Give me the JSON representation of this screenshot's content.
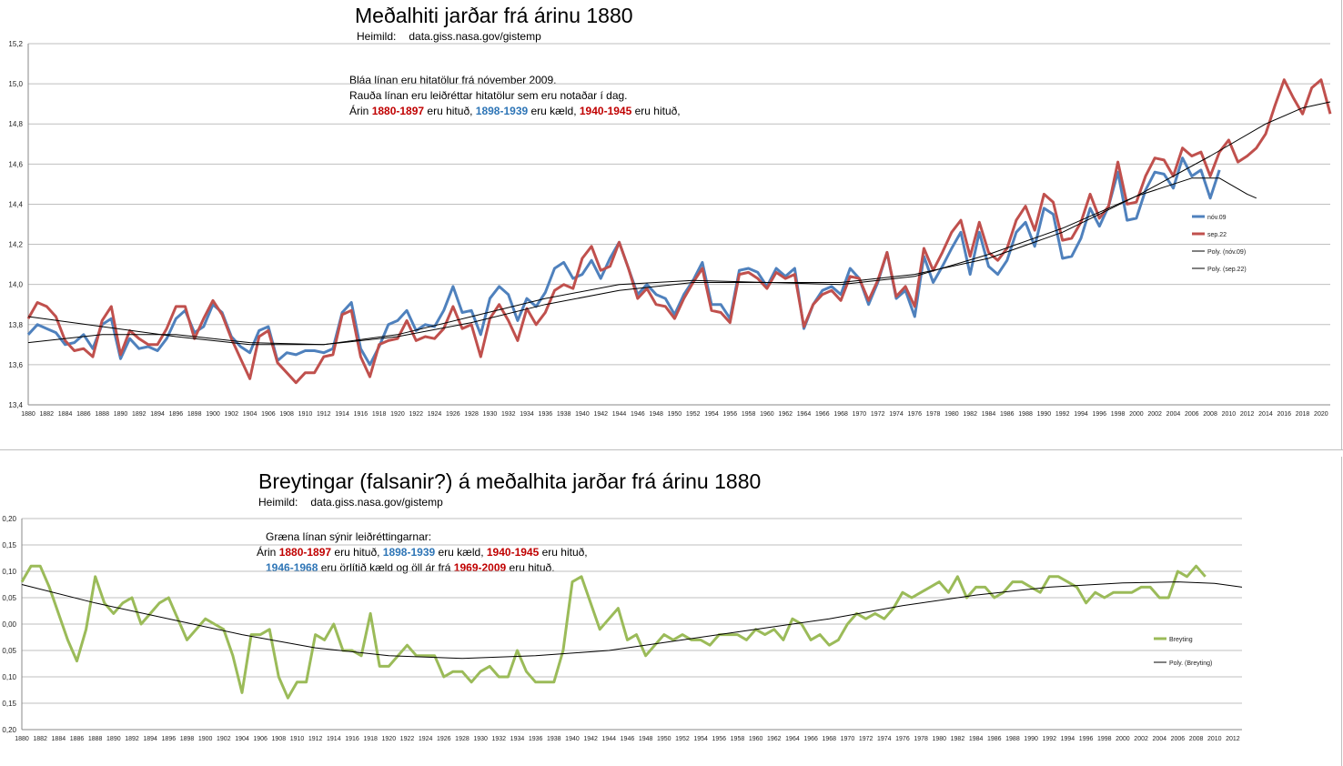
{
  "chart_data": [
    {
      "type": "line",
      "title": "Meðalhiti jarðar frá árinu 1880",
      "source_label": "Heimild:",
      "source_url": "data.giss.nasa.gov/gistemp",
      "ylim": [
        13.4,
        15.2
      ],
      "yticks": [
        "13,4",
        "13,6",
        "13,8",
        "14,0",
        "14,2",
        "14,4",
        "14,6",
        "14,8",
        "15,0",
        "15,2"
      ],
      "xlim": [
        1880,
        2021
      ],
      "xticks": [
        "1880",
        "1882",
        "1884",
        "1886",
        "1888",
        "1890",
        "1892",
        "1894",
        "1896",
        "1898",
        "1900",
        "1902",
        "1904",
        "1906",
        "1908",
        "1910",
        "1912",
        "1914",
        "1916",
        "1918",
        "1920",
        "1922",
        "1924",
        "1926",
        "1928",
        "1930",
        "1932",
        "1934",
        "1936",
        "1938",
        "1940",
        "1942",
        "1944",
        "1946",
        "1948",
        "1950",
        "1952",
        "1954",
        "1956",
        "1958",
        "1960",
        "1962",
        "1964",
        "1966",
        "1968",
        "1970",
        "1972",
        "1974",
        "1976",
        "1978",
        "1980",
        "1982",
        "1984",
        "1986",
        "1988",
        "1990",
        "1992",
        "1994",
        "1996",
        "1998",
        "2000",
        "2002",
        "2004",
        "2006",
        "2008",
        "2010",
        "2012",
        "2014",
        "2016",
        "2018",
        "2020"
      ],
      "annotation": {
        "line1": "Bláa línan eru hitatölur frá nóvember  2009.",
        "line2": "Rauða línan eru leiðréttar hitatölur sem eru notaðar í dag.",
        "line3_prefix": "Árin ",
        "line3_range1": "1880-1897",
        "line3_text1": "  eru hituð,  ",
        "line3_range2": "1898-1939",
        "line3_text2": "  eru kæld,  ",
        "line3_range3": "1940-1945",
        "line3_text3": "  eru hituð,"
      },
      "legend": {
        "placement": "right",
        "entries": [
          "nóv.09",
          "sep.22",
          "Poly. (nóv.09)",
          "Poly. (sep.22)"
        ]
      },
      "series": [
        {
          "name": "nóv.09",
          "color": "#4f81bd",
          "x_start": 1880,
          "values": [
            13.75,
            13.8,
            13.78,
            13.76,
            13.7,
            13.71,
            13.75,
            13.68,
            13.8,
            13.83,
            13.63,
            13.73,
            13.68,
            13.69,
            13.67,
            13.73,
            13.83,
            13.87,
            13.76,
            13.79,
            13.9,
            13.86,
            13.74,
            13.69,
            13.66,
            13.77,
            13.79,
            13.62,
            13.66,
            13.65,
            13.67,
            13.67,
            13.66,
            13.68,
            13.86,
            13.91,
            13.68,
            13.6,
            13.69,
            13.8,
            13.82,
            13.87,
            13.77,
            13.8,
            13.79,
            13.87,
            13.99,
            13.86,
            13.87,
            13.75,
            13.93,
            13.99,
            13.95,
            13.82,
            13.93,
            13.89,
            13.96,
            14.08,
            14.11,
            14.03,
            14.05,
            14.12,
            14.03,
            14.13,
            14.21,
            14.08,
            13.95,
            14.0,
            13.95,
            13.93,
            13.85,
            13.95,
            14.02,
            14.11,
            13.9,
            13.9,
            13.83,
            14.07,
            14.08,
            14.06,
            13.99,
            14.08,
            14.04,
            14.08,
            13.78,
            13.9,
            13.97,
            13.99,
            13.95,
            14.08,
            14.03,
            13.9,
            14.01,
            14.16,
            13.93,
            13.97,
            13.84,
            14.14,
            14.01,
            14.09,
            14.18,
            14.26,
            14.05,
            14.26,
            14.09,
            14.05,
            14.12,
            14.26,
            14.31,
            14.19,
            14.38,
            14.35,
            14.13,
            14.14,
            14.23,
            14.38,
            14.29,
            14.39,
            14.56,
            14.32,
            14.33,
            14.47,
            14.56,
            14.55,
            14.48,
            14.63,
            14.54,
            14.57,
            14.43,
            14.57
          ]
        },
        {
          "name": "sep.22",
          "color": "#c0504d",
          "x_start": 1880,
          "values": [
            13.83,
            13.91,
            13.89,
            13.84,
            13.72,
            13.67,
            13.68,
            13.64,
            13.82,
            13.89,
            13.65,
            13.77,
            13.73,
            13.7,
            13.7,
            13.78,
            13.89,
            13.89,
            13.73,
            13.83,
            13.92,
            13.85,
            13.73,
            13.63,
            13.53,
            13.74,
            13.77,
            13.61,
            13.56,
            13.51,
            13.56,
            13.56,
            13.64,
            13.65,
            13.85,
            13.87,
            13.64,
            13.54,
            13.7,
            13.72,
            13.73,
            13.82,
            13.72,
            13.74,
            13.73,
            13.78,
            13.89,
            13.78,
            13.8,
            13.64,
            13.83,
            13.9,
            13.82,
            13.72,
            13.88,
            13.8,
            13.86,
            13.97,
            14.0,
            13.98,
            14.13,
            14.19,
            14.07,
            14.09,
            14.21,
            14.08,
            13.93,
            13.98,
            13.9,
            13.89,
            13.83,
            13.93,
            14.01,
            14.08,
            13.87,
            13.86,
            13.81,
            14.05,
            14.06,
            14.03,
            13.98,
            14.06,
            14.03,
            14.05,
            13.79,
            13.9,
            13.95,
            13.97,
            13.92,
            14.04,
            14.03,
            13.92,
            14.02,
            14.16,
            13.94,
            13.99,
            13.89,
            14.18,
            14.07,
            14.16,
            14.26,
            14.32,
            14.14,
            14.31,
            14.16,
            14.12,
            14.18,
            14.32,
            14.39,
            14.27,
            14.45,
            14.41,
            14.22,
            14.23,
            14.31,
            14.45,
            14.33,
            14.39,
            14.61,
            14.4,
            14.41,
            14.54,
            14.63,
            14.62,
            14.54,
            14.68,
            14.64,
            14.66,
            14.54,
            14.66,
            14.72,
            14.61,
            14.64,
            14.68,
            14.75,
            14.89,
            15.02,
            14.93,
            14.85,
            14.98,
            15.02,
            14.85
          ]
        },
        {
          "name": "Poly. (nóv.09)",
          "color": "#000000",
          "points": [
            [
              1880,
              13.71
            ],
            [
              1888,
              13.75
            ],
            [
              1896,
              13.75
            ],
            [
              1904,
              13.71
            ],
            [
              1912,
              13.7
            ],
            [
              1920,
              13.75
            ],
            [
              1928,
              13.84
            ],
            [
              1936,
              13.93
            ],
            [
              1944,
              14.0
            ],
            [
              1952,
              14.02
            ],
            [
              1960,
              14.01
            ],
            [
              1968,
              14.0
            ],
            [
              1976,
              14.04
            ],
            [
              1984,
              14.15
            ],
            [
              1992,
              14.28
            ],
            [
              2000,
              14.44
            ],
            [
              2006,
              14.53
            ],
            [
              2009,
              14.53
            ],
            [
              2012,
              14.45
            ],
            [
              2013,
              14.43
            ]
          ]
        },
        {
          "name": "Poly. (sep.22)",
          "color": "#000000",
          "points": [
            [
              1880,
              13.84
            ],
            [
              1888,
              13.79
            ],
            [
              1896,
              13.74
            ],
            [
              1904,
              13.7
            ],
            [
              1912,
              13.7
            ],
            [
              1920,
              13.74
            ],
            [
              1928,
              13.81
            ],
            [
              1936,
              13.9
            ],
            [
              1944,
              13.97
            ],
            [
              1952,
              14.01
            ],
            [
              1960,
              14.01
            ],
            [
              1968,
              14.01
            ],
            [
              1976,
              14.05
            ],
            [
              1984,
              14.13
            ],
            [
              1992,
              14.26
            ],
            [
              2000,
              14.44
            ],
            [
              2008,
              14.64
            ],
            [
              2014,
              14.8
            ],
            [
              2018,
              14.88
            ],
            [
              2021,
              14.91
            ]
          ]
        }
      ]
    },
    {
      "type": "line",
      "title": "Breytingar (falsanir?) á meðalhita jarðar frá árinu 1880",
      "source_label": "Heimild:",
      "source_url": "data.giss.nasa.gov/gistemp",
      "ylim": [
        -0.2,
        0.2
      ],
      "yticks": [
        "0,20",
        "0,15",
        "0,10",
        "0,05",
        "0,00",
        "0,05",
        "0,10",
        "0,15",
        "0,20"
      ],
      "xlim": [
        1880,
        2013
      ],
      "xticks": [
        "1880",
        "1882",
        "1884",
        "1886",
        "1888",
        "1890",
        "1892",
        "1894",
        "1896",
        "1898",
        "1900",
        "1902",
        "1904",
        "1906",
        "1908",
        "1910",
        "1912",
        "1914",
        "1916",
        "1918",
        "1920",
        "1922",
        "1924",
        "1926",
        "1928",
        "1930",
        "1932",
        "1934",
        "1936",
        "1938",
        "1940",
        "1942",
        "1944",
        "1946",
        "1948",
        "1950",
        "1952",
        "1954",
        "1956",
        "1958",
        "1960",
        "1962",
        "1964",
        "1966",
        "1968",
        "1970",
        "1972",
        "1974",
        "1976",
        "1978",
        "1980",
        "1982",
        "1984",
        "1986",
        "1988",
        "1990",
        "1992",
        "1994",
        "1996",
        "1998",
        "2000",
        "2002",
        "2004",
        "2006",
        "2008",
        "2010",
        "2012"
      ],
      "annotation": {
        "line1": "Græna línan sýnir leiðréttingarnar:",
        "line2_prefix": "Árin ",
        "line2_range1": "1880-1897",
        "line2_text1": "  eru hituð,  ",
        "line2_range2": "1898-1939",
        "line2_text2": "  eru kæld,  ",
        "line2_range3": "1940-1945",
        "line2_text3": "  eru hituð,",
        "line3_range1": "1946-1968",
        "line3_text1": "  eru  örlítið  kæld og öll ár frá  ",
        "line3_range2": "1969-2009",
        "line3_text2": "  eru hituð."
      },
      "legend": {
        "placement": "right",
        "entries": [
          "Breyting",
          "Poly. (Breyting)"
        ]
      },
      "series": [
        {
          "name": "Breyting",
          "color": "#9bbb59",
          "x_start": 1880,
          "values": [
            0.08,
            0.11,
            0.11,
            0.07,
            0.02,
            -0.03,
            -0.07,
            -0.01,
            0.09,
            0.04,
            0.02,
            0.04,
            0.05,
            0.0,
            0.02,
            0.04,
            0.05,
            0.01,
            -0.03,
            -0.01,
            0.01,
            0.0,
            -0.01,
            -0.06,
            -0.13,
            -0.02,
            -0.02,
            -0.01,
            -0.1,
            -0.14,
            -0.11,
            -0.11,
            -0.02,
            -0.03,
            0.0,
            -0.05,
            -0.05,
            -0.06,
            0.02,
            -0.08,
            -0.08,
            -0.06,
            -0.04,
            -0.06,
            -0.06,
            -0.06,
            -0.1,
            -0.09,
            -0.09,
            -0.11,
            -0.09,
            -0.08,
            -0.1,
            -0.1,
            -0.05,
            -0.09,
            -0.11,
            -0.11,
            -0.11,
            -0.05,
            0.08,
            0.09,
            0.04,
            -0.01,
            0.01,
            0.03,
            -0.03,
            -0.02,
            -0.06,
            -0.04,
            -0.02,
            -0.03,
            -0.02,
            -0.03,
            -0.03,
            -0.04,
            -0.02,
            -0.02,
            -0.02,
            -0.03,
            -0.01,
            -0.02,
            -0.01,
            -0.03,
            0.01,
            0.0,
            -0.03,
            -0.02,
            -0.04,
            -0.03,
            0.0,
            0.02,
            0.01,
            0.02,
            0.01,
            0.03,
            0.06,
            0.05,
            0.06,
            0.07,
            0.08,
            0.06,
            0.09,
            0.05,
            0.07,
            0.07,
            0.05,
            0.06,
            0.08,
            0.08,
            0.07,
            0.06,
            0.09,
            0.09,
            0.08,
            0.07,
            0.04,
            0.06,
            0.05,
            0.06,
            0.06,
            0.06,
            0.07,
            0.07,
            0.05,
            0.05,
            0.1,
            0.09,
            0.11,
            0.09
          ]
        },
        {
          "name": "Poly. (Breyting)",
          "color": "#000000",
          "points": [
            [
              1880,
              0.075
            ],
            [
              1888,
              0.04
            ],
            [
              1896,
              0.01
            ],
            [
              1904,
              -0.02
            ],
            [
              1912,
              -0.045
            ],
            [
              1920,
              -0.06
            ],
            [
              1928,
              -0.065
            ],
            [
              1936,
              -0.06
            ],
            [
              1944,
              -0.05
            ],
            [
              1952,
              -0.03
            ],
            [
              1960,
              -0.01
            ],
            [
              1968,
              0.01
            ],
            [
              1976,
              0.035
            ],
            [
              1984,
              0.055
            ],
            [
              1992,
              0.07
            ],
            [
              2000,
              0.078
            ],
            [
              2006,
              0.08
            ],
            [
              2010,
              0.077
            ],
            [
              2013,
              0.07
            ]
          ]
        }
      ]
    }
  ]
}
